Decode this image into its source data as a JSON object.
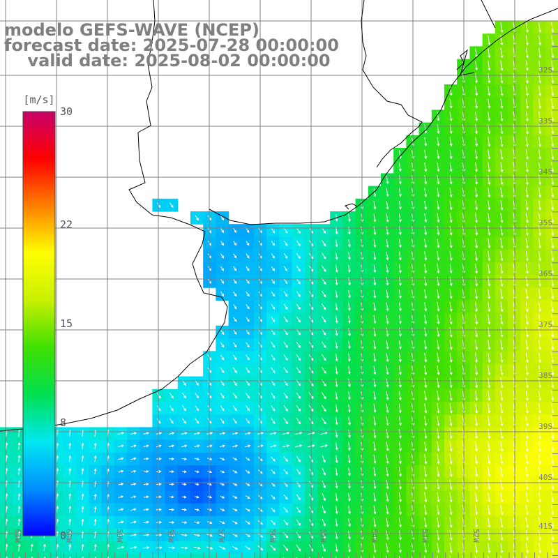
{
  "title": {
    "line1": "modelo GEFS-WAVE (NCEP)",
    "line2": "forecast date: 2025-07-28 00:00:00",
    "line3": "    valid date: 2025-08-02 00:00:00"
  },
  "colorbar": {
    "unit": "[m/s]",
    "ticks": [
      "30",
      "22",
      "15",
      "8",
      "0"
    ],
    "tick_values": [
      30,
      22,
      15,
      8,
      0
    ],
    "range": [
      0,
      30
    ],
    "stops": [
      "#0000ff",
      "#0090ff",
      "#00e8f0",
      "#00e050",
      "#40e000",
      "#c8f000",
      "#ffff00",
      "#ff8000",
      "#ff0000",
      "#c8006a"
    ]
  },
  "lat_labels": [
    "32S",
    "33S",
    "34S",
    "35S",
    "36S",
    "37S",
    "38S",
    "39S",
    "40S",
    "41S"
  ],
  "lon_labels": [
    "61W",
    "60W",
    "59W",
    "58W",
    "57W",
    "56W",
    "55W",
    "54W",
    "53W",
    "52W"
  ],
  "colors": {
    "land": "#ffffff",
    "coast": "#000000",
    "grid": "#808080",
    "arrows": "#ffffff",
    "title_text": "#7f7f7f"
  }
}
